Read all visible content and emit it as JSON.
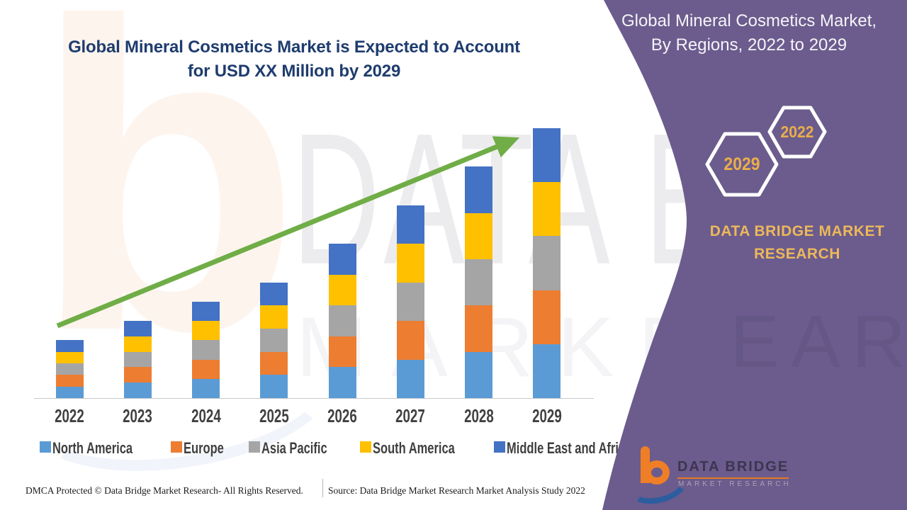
{
  "chart": {
    "title_line1": "Global Mineral Cosmetics Market is Expected to Account",
    "title_line2": "for USD XX Million by 2029",
    "title_color": "#1E3C6E"
  },
  "chart_data": {
    "type": "bar",
    "stacked": true,
    "title": "Global Mineral Cosmetics Market is Expected to Account for USD XX Million by 2029",
    "categories": [
      "2022",
      "2023",
      "2024",
      "2025",
      "2026",
      "2027",
      "2028",
      "2029"
    ],
    "series": [
      {
        "name": "North America",
        "color": "#5B9BD5",
        "values": [
          3,
          4,
          5,
          6,
          8,
          10,
          12,
          14
        ]
      },
      {
        "name": "Europe",
        "color": "#ED7D31",
        "values": [
          3,
          4,
          5,
          6,
          8,
          10,
          12,
          14
        ]
      },
      {
        "name": "Asia Pacific",
        "color": "#A5A5A5",
        "values": [
          3,
          4,
          5,
          6,
          8,
          10,
          12,
          14
        ]
      },
      {
        "name": "South America",
        "color": "#FFC000",
        "values": [
          3,
          4,
          5,
          6,
          8,
          10,
          12,
          14
        ]
      },
      {
        "name": "Middle East and Africa",
        "color": "#4472C4",
        "values": [
          3,
          4,
          5,
          6,
          8,
          10,
          12,
          14
        ]
      }
    ],
    "value_units": "relative units read from bar heights; actual figures masked as USD XX Million",
    "ylim": [
      0,
      72
    ],
    "grid": false,
    "legend_position": "bottom",
    "axis_line_color": "#c9c9c9",
    "trend_arrow": {
      "color": "#70AD47",
      "from": [
        81,
        460
      ],
      "to": [
        704,
        206
      ]
    }
  },
  "panel": {
    "background_color": "#6B5C8D",
    "title_line1": "Global Mineral Cosmetics Market,",
    "title_line2": "By Regions, 2022 to 2029",
    "hexagon_large_year": "2029",
    "hexagon_small_year": "2022",
    "brand_line1": "DATA BRIDGE MARKET",
    "brand_line2": "RESEARCH",
    "gold_color": "#EDB85A"
  },
  "watermark": {
    "big_letter": "b",
    "row1": "DATA BRI",
    "row2": "MARKET RE",
    "panel_row": "EARCH"
  },
  "footer": {
    "dmca": "DMCA Protected © Data Bridge Market Research- All Rights Reserved.",
    "source": "Source: Data Bridge Market Research Market Analysis Study 2022",
    "logo_title": "DATA BRIDGE",
    "logo_subtitle": "MARKET RESEARCH"
  }
}
